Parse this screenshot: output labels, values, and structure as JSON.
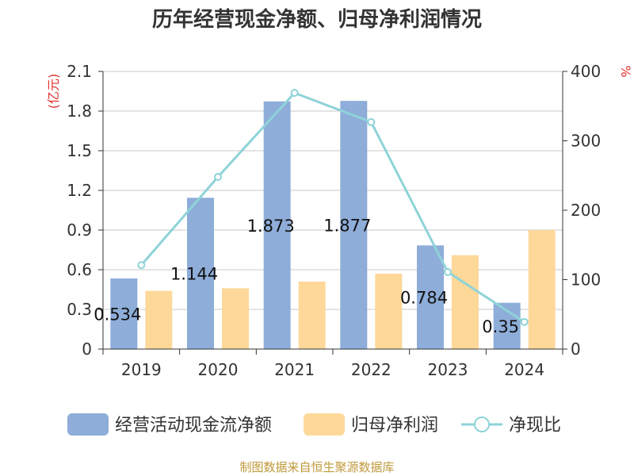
{
  "chart_data": {
    "type": "bar",
    "title": "历年经营现金净额、归母净利润情况",
    "categories": [
      "2019",
      "2020",
      "2021",
      "2022",
      "2023",
      "2024"
    ],
    "left_axis": {
      "unit": "(亿元)",
      "ylim": [
        0,
        2.1
      ],
      "ticks": [
        "0",
        "0.3",
        "0.6",
        "0.9",
        "1.2",
        "1.5",
        "1.8",
        "2.1"
      ]
    },
    "right_axis": {
      "unit": "%",
      "ylim": [
        0,
        400
      ],
      "ticks": [
        "0",
        "100",
        "200",
        "300",
        "400"
      ]
    },
    "series": [
      {
        "name": "经营活动现金流净额",
        "type": "bar",
        "axis": "left",
        "color": "#8eadd9",
        "values": [
          0.534,
          1.144,
          1.873,
          1.877,
          0.784,
          0.35
        ],
        "labels": [
          "0.534",
          "1.144",
          "1.873",
          "1.877",
          "0.784",
          "0.35"
        ]
      },
      {
        "name": "归母净利润",
        "type": "bar",
        "axis": "left",
        "color": "#fdd899",
        "values": [
          0.44,
          0.46,
          0.51,
          0.57,
          0.71,
          0.9
        ]
      },
      {
        "name": "净现比",
        "type": "line",
        "axis": "right",
        "color": "#8ed3d8",
        "values": [
          121,
          248,
          369,
          327,
          111,
          39
        ]
      }
    ],
    "grid": true,
    "legend_position": "bottom"
  },
  "source_note": "制图数据来自恒生聚源数据库"
}
